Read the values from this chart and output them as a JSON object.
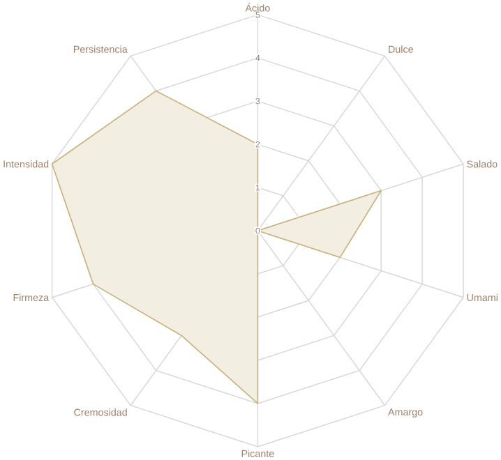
{
  "chart_data": {
    "type": "radar",
    "categories": [
      "Ácido",
      "Dulce",
      "Salado",
      "Umami",
      "Amargo",
      "Picante",
      "Cremosidad",
      "Firmeza",
      "Intensidad",
      "Persistencia"
    ],
    "series": [
      {
        "color": "#c8b27a",
        "values": [
          2,
          0,
          3,
          2,
          0,
          4,
          3,
          4,
          5,
          4
        ]
      }
    ],
    "ylim": [
      0,
      5
    ],
    "yticks": [
      0,
      1,
      2,
      3,
      4,
      5
    ],
    "grid": true
  }
}
